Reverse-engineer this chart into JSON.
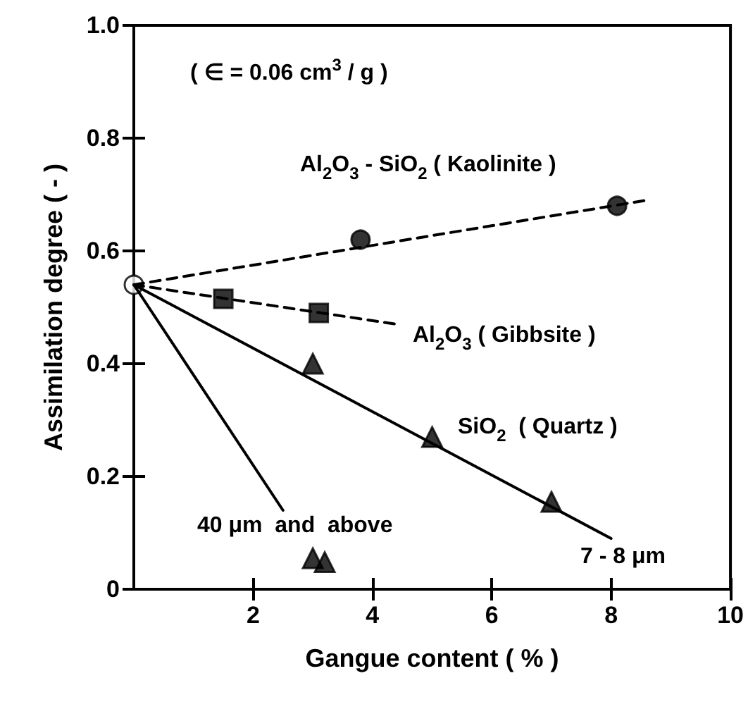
{
  "chart_data": {
    "type": "scatter",
    "xlabel": "Gangue content ( % )",
    "ylabel": "Assimilation degree ( - )",
    "xlim": [
      0,
      10
    ],
    "xticks": [
      2,
      4,
      6,
      8,
      10
    ],
    "ylim": [
      0,
      1.0
    ],
    "yticks": [
      0,
      0.2,
      0.4,
      0.6,
      0.8,
      {
        "value": 1.0,
        "label": "1.0"
      }
    ],
    "grid": false,
    "annotations": [
      "( ∈ = 0.06 cm$^{3}$ / g )",
      "Al$_{2}$O$_{3}$ - SiO$_{2}$ ( Kaolinite )",
      "Al$_{2}$O$_{3}$ ( Gibbsite )",
      "SiO$_{2}$  ( Quartz )",
      "40 μm  and  above",
      "7 - 8 μm"
    ],
    "series": [
      {
        "type": "line",
        "x": [
          0,
          8.6
        ],
        "values": [
          0.54,
          0.69
        ],
        "color": "#000000",
        "line_style": "dashed",
        "marker": "none"
      },
      {
        "x": [
          3.8,
          8.1
        ],
        "values": [
          0.62,
          0.68
        ],
        "color": "#000000",
        "marker": "circle"
      },
      {
        "type": "line",
        "x": [
          0,
          4.4
        ],
        "values": [
          0.54,
          0.47
        ],
        "color": "#000000",
        "line_style": "dashed",
        "marker": "none"
      },
      {
        "x": [
          1.5,
          3.1
        ],
        "values": [
          0.515,
          0.49
        ],
        "color": "#000000",
        "marker": "square"
      },
      {
        "type": "line",
        "x": [
          0,
          8
        ],
        "values": [
          0.54,
          0.09
        ],
        "color": "#000000",
        "line_style": "solid",
        "marker": "none"
      },
      {
        "x": [
          3,
          5,
          7
        ],
        "values": [
          0.4,
          0.27,
          0.155
        ],
        "color": "#000000",
        "marker": "triangle"
      },
      {
        "type": "line",
        "x": [
          0,
          2.5
        ],
        "values": [
          0.54,
          0.14
        ],
        "color": "#000000",
        "line_style": "solid",
        "marker": "none"
      },
      {
        "x": [
          3.0,
          3.2
        ],
        "values": [
          0.055,
          0.048
        ],
        "color": "#000000",
        "marker": "triangle"
      },
      {
        "x": [
          0
        ],
        "values": [
          0.54
        ],
        "color": "#ffffff",
        "marker": "circle"
      }
    ]
  }
}
